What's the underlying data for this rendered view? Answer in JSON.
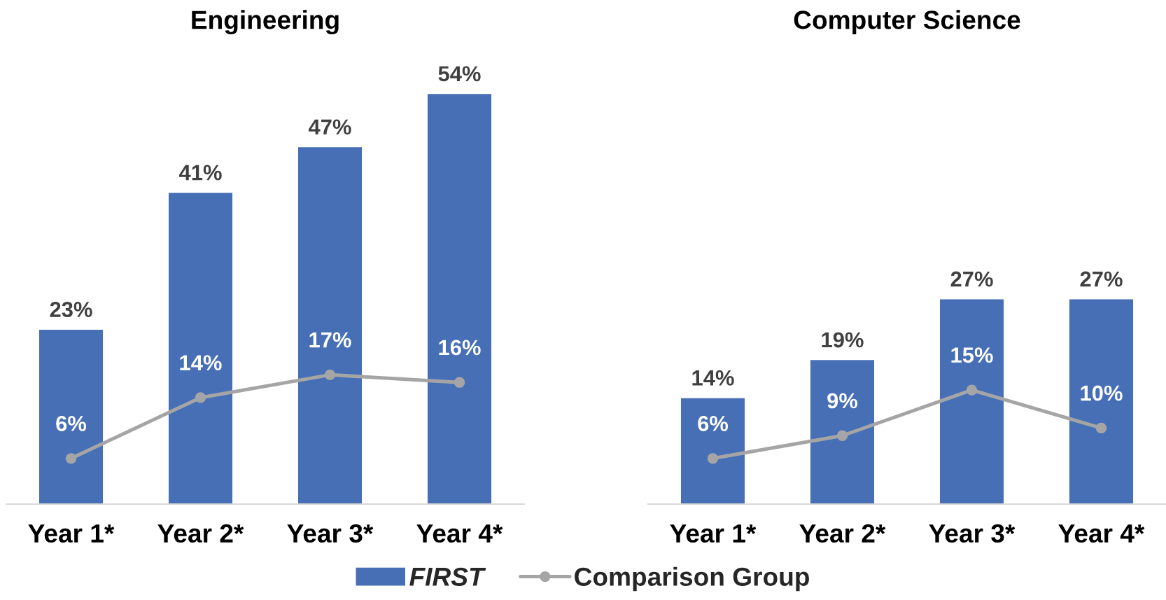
{
  "chart_data": [
    {
      "type": "bar",
      "title": "Engineering",
      "categories": [
        "Year 1*",
        "Year 2*",
        "Year 3*",
        "Year 4*"
      ],
      "series": [
        {
          "name": "FIRST",
          "color": "#476fb6",
          "values": [
            23,
            41,
            47,
            54
          ],
          "value_labels": [
            "23%",
            "41%",
            "47%",
            "54%"
          ]
        },
        {
          "name": "Comparison Group",
          "type": "line",
          "color": "#a5a5a5",
          "marker": "circle",
          "values": [
            6,
            14,
            17,
            16
          ],
          "value_labels": [
            "6%",
            "14%",
            "17%",
            "16%"
          ]
        }
      ],
      "tick_labels": "x",
      "legend": "bottom"
    },
    {
      "type": "bar",
      "title": "Computer Science",
      "categories": [
        "Year 1*",
        "Year 2*",
        "Year 3*",
        "Year 4*"
      ],
      "series": [
        {
          "name": "FIRST",
          "color": "#476fb6",
          "values": [
            14,
            19,
            27,
            27
          ],
          "value_labels": [
            "14%",
            "19%",
            "27%",
            "27%"
          ]
        },
        {
          "name": "Comparison Group",
          "type": "line",
          "color": "#a5a5a5",
          "marker": "circle",
          "values": [
            6,
            9,
            15,
            10
          ],
          "value_labels": [
            "6%",
            "9%",
            "15%",
            "10%"
          ]
        }
      ],
      "tick_labels": "x"
    }
  ]
}
